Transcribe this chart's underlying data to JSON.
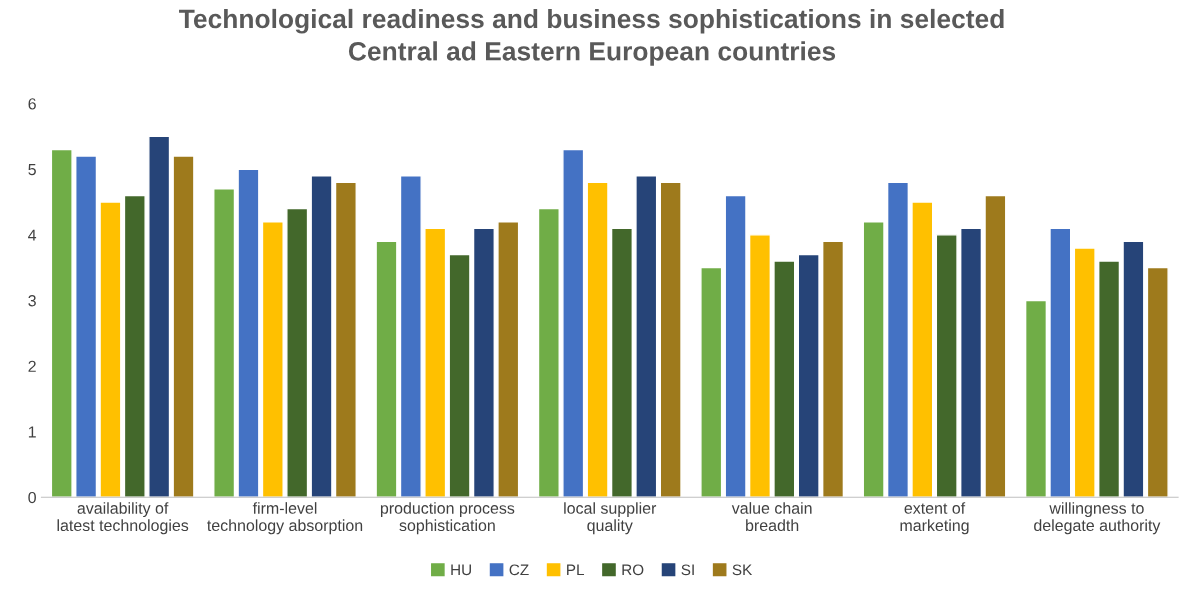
{
  "chart_data": {
    "type": "bar",
    "title": "Technological readiness and business sophistications in selected\nCentral ad Eastern European countries",
    "categories": [
      "availability of latest technologies",
      "firm-level technology absorption",
      "production process sophistication",
      "local supplier quality",
      "value chain breadth",
      "extent of marketing",
      "willingness to delegate authority"
    ],
    "series": [
      {
        "name": "HU",
        "color": "#70ad47",
        "values": [
          5.3,
          4.7,
          3.9,
          4.4,
          3.5,
          4.2,
          3.0
        ]
      },
      {
        "name": "CZ",
        "color": "#4472c4",
        "values": [
          5.2,
          5.0,
          4.9,
          5.3,
          4.6,
          4.8,
          4.1
        ]
      },
      {
        "name": "PL",
        "color": "#ffc000",
        "values": [
          4.5,
          4.2,
          4.1,
          4.8,
          4.0,
          4.5,
          3.8
        ]
      },
      {
        "name": "RO",
        "color": "#43682b",
        "values": [
          4.6,
          4.4,
          3.7,
          4.1,
          3.6,
          4.0,
          3.6
        ]
      },
      {
        "name": "SI",
        "color": "#264478",
        "values": [
          5.5,
          4.9,
          4.1,
          4.9,
          3.7,
          4.1,
          3.9
        ]
      },
      {
        "name": "SK",
        "color": "#9e7a1c",
        "values": [
          5.2,
          4.8,
          4.2,
          4.8,
          3.9,
          4.6,
          3.5
        ]
      }
    ],
    "ylim": [
      0,
      6
    ],
    "yticks": [
      0,
      1,
      2,
      3,
      4,
      5,
      6
    ],
    "grid": false,
    "legend": "bottom"
  }
}
